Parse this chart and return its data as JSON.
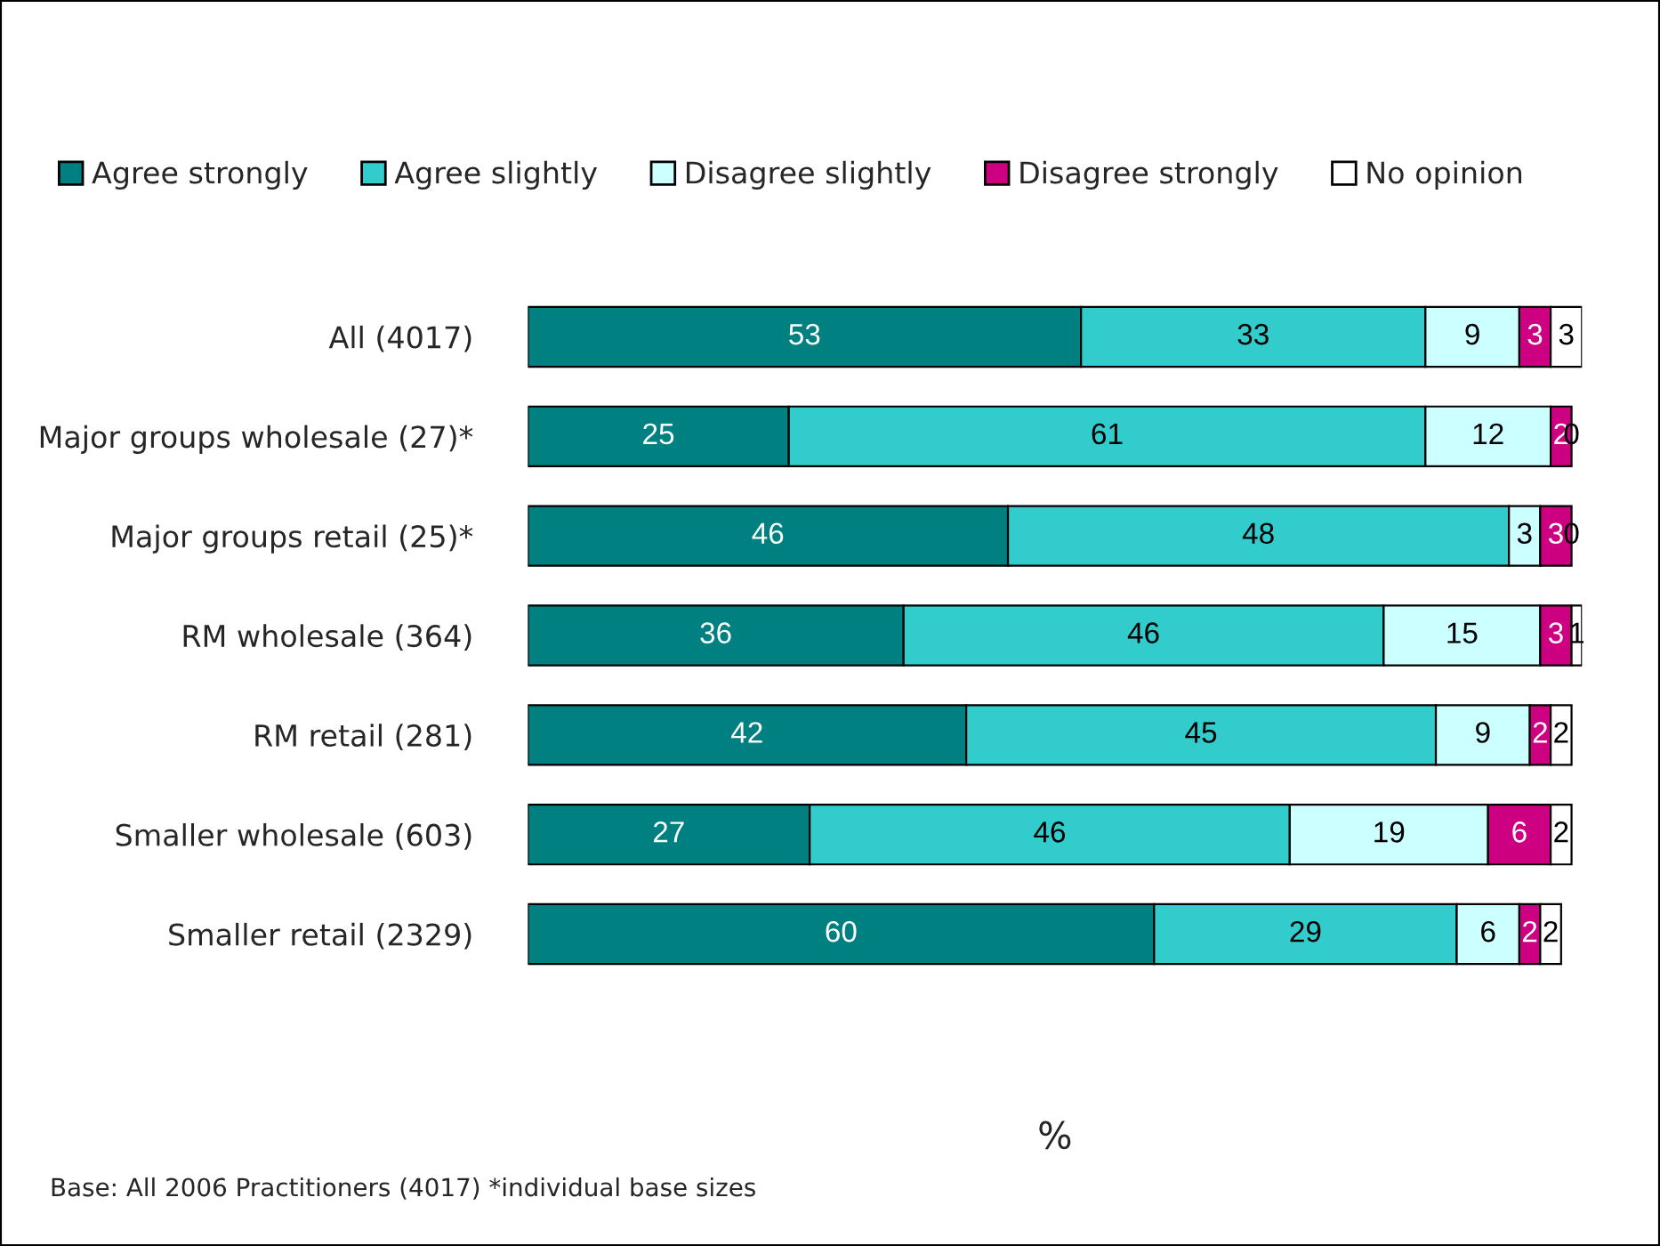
{
  "chart_data": {
    "type": "bar",
    "orientation": "horizontal",
    "stacked": true,
    "data_labels": true,
    "legend": "top",
    "grid": false,
    "xlabel": "%",
    "annotations": [
      "Base: All 2006 Practitioners (4017) *individual base sizes"
    ],
    "categories": [
      "All (4017)",
      "Major groups wholesale (27)*",
      "Major groups retail (25)*",
      "RM wholesale (364)",
      "RM retail (281)",
      "Smaller wholesale (603)",
      "Smaller retail (2329)"
    ],
    "series": [
      {
        "name": "Agree strongly",
        "color": "#008080",
        "values": [
          53,
          25,
          46,
          36,
          42,
          27,
          60
        ]
      },
      {
        "name": "Agree slightly",
        "color": "#33cccc",
        "values": [
          33,
          61,
          48,
          46,
          45,
          46,
          29
        ]
      },
      {
        "name": "Disagree slightly",
        "color": "#ccffff",
        "values": [
          9,
          12,
          3,
          15,
          9,
          19,
          6
        ]
      },
      {
        "name": "Disagree strongly",
        "color": "#cc0080",
        "values": [
          3,
          2,
          3,
          3,
          2,
          6,
          2
        ]
      },
      {
        "name": "No opinion",
        "color": "#ffffff",
        "values": [
          3,
          0,
          0,
          1,
          2,
          2,
          2
        ]
      }
    ]
  }
}
